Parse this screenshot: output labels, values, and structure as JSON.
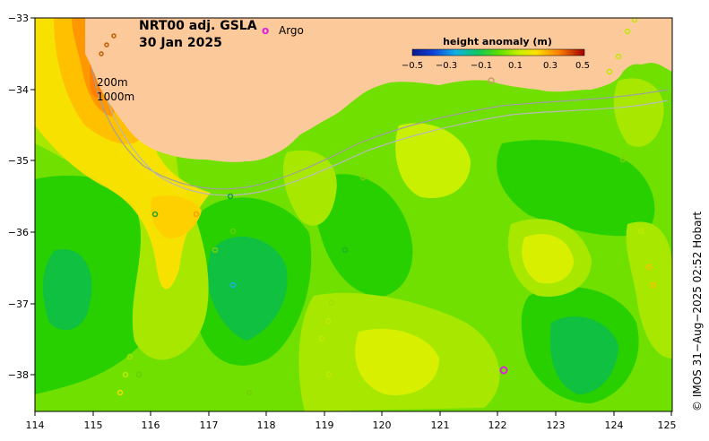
{
  "map": {
    "title_line1": "NRT00 adj. GSLA",
    "title_line2": "30 Jan 2025",
    "argo_marker": "o",
    "argo_label": "Argo",
    "argo_color": "#e020e0",
    "contour_label_200": "200m",
    "contour_label_1000": "1000m",
    "colorbar_title": "height anomaly (m)",
    "colorbar_ticks": [
      "−0.5",
      "−0.3",
      "−0.1",
      "0.1",
      "0.3",
      "0.5"
    ],
    "credit": "© IMOS 31−Aug−2025 02:52 Hobart",
    "land_color": "#fcc99b",
    "x_ticks": [
      "114",
      "115",
      "116",
      "117",
      "118",
      "119",
      "120",
      "121",
      "122",
      "123",
      "124",
      "125"
    ],
    "y_ticks": [
      "−33",
      "−34",
      "−35",
      "−36",
      "−37",
      "−38"
    ],
    "lon_range": [
      114,
      125
    ],
    "lat_range": [
      -38.5,
      -33
    ]
  }
}
